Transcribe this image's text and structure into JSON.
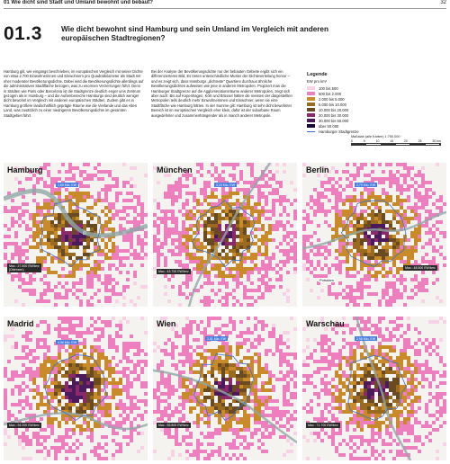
{
  "header": {
    "chapter": "01  Wie dicht sind Stadt und Umland bewohnt und bebaut?",
    "page": "32"
  },
  "section": {
    "number": "01.3",
    "title": "Wie dicht bewohnt sind Hamburg und sein Umland im Vergleich mit anderen europäischen Stadtregionen?"
  },
  "text": {
    "col1": "Hamburg gilt, wie eingangs beschrieben, im europäischen Vergleich mit seiner Dichte von etwa 2.700 Einwohnerinnen und Einwohnern pro Quadratkilometer als Stadt mit eher moderater Bevölkerungsdichte. Dabei wird die Bevölkerungsdichte allerdings auf die administrativen Stadtfläche bezogen, was zu enormen Verzerrungen führt. Denn in Städten wie Paris oder Barcelona ist die Stadtgrenze deutlich enger ums Zentrum gezogen als in Hamburg – und die Außenbereiche Hamburgs sind deutlich weniger dicht bewohnt im Vergleich mit anderen europäischen Städten. Zudem gibt es in Hamburg größere landschaftlich geprägte Räume wie die Vierlande und das Alten Land, was zusätzlich zu einer niedrigeren Bevölkerungsdichte im gesamten Stadtgebiet führt.",
    "col2": "Bei der Analyse der Bevölkerungsdichte nur der bebauten Gebiete ergibt sich ein differenzierteres Bild. Es treten unterschiedliche Muster der Dichteverteilung hervor – und es zeigt sich, dass Hamburgs „dichteste“ Quartiere durchaus ähnliche Bevölkerungsdichten aufweisen wie jene in anderen Metropolen. Projiziert man die Hamburger Stadtgrenze auf die Agglomerationsräume anderer Metropolen, zeigt sich aber auch: Bis auf Kopenhagen, Köln und Brüssel hätten die meisten der dargestellten Metropolen teils deutlich mehr Einwohnerinnen und Einwohner, wenn sie eine Stadtfläche wie Hamburg hätten. In der Summe gilt: Hamburg ist sehr dicht bewohnter Bereich ist im europäischen Vergleich eher klein, dafür ist der suburbane Raum ausgedehnter und zusammenhängender als in manch anderer Metropole."
  },
  "legend": {
    "title": "Legende",
    "unit": "EW pro km²",
    "items": [
      {
        "label": "100 bis 500",
        "color": "#f7d2e6"
      },
      {
        "label": "500 bis 2.000",
        "color": "#ee7fbf"
      },
      {
        "label": "2.000 bis 5.000",
        "color": "#c98a2a"
      },
      {
        "label": "5.000 bis 10.000",
        "color": "#9a6a1e"
      },
      {
        "label": "10.000 bis 20.000",
        "color": "#6a4a20"
      },
      {
        "label": "20.000 bis 30.000",
        "color": "#8a2a6a"
      },
      {
        "label": "30.000 bis 50.000",
        "color": "#4a1a5a"
      },
      {
        "label": "über 50.000",
        "color": "#1a0a3a"
      }
    ],
    "boundary_label": "Hamburger Stadtgrenze"
  },
  "scale": {
    "title": "Maßstab (alle Karten) 1:750.000",
    "ticks": [
      "0",
      "5",
      "10",
      "15",
      "20",
      "25",
      "30 km"
    ]
  },
  "maps": [
    {
      "name": "Hamburg",
      "peak": "1,50 Mio. EW",
      "max": "Max.: 27.500 EW/km²",
      "max2": "(Ottensen)",
      "place": ""
    },
    {
      "name": "München",
      "peak": "3,24 Mio. EW",
      "max": "Max.: 43.700 EW/km²",
      "max2": "",
      "place": ""
    },
    {
      "name": "Berlin",
      "peak": "2,79 Mio. EW",
      "max": "Max.: 48.500 EW/km²",
      "max2": "",
      "place": "Potsdam"
    },
    {
      "name": "Madrid",
      "peak": "4,06 Mio. EW",
      "max": "Max.: 94.000 EW/km²",
      "max2": "",
      "place": ""
    },
    {
      "name": "Wien",
      "peak": "2,51 Mio. EW",
      "max": "Max.: 55.800 EW/km²",
      "max2": "",
      "place": ""
    },
    {
      "name": "Warschau",
      "peak": "2,06 Mio. EW",
      "max": "Max.: 71.700 EW/km²",
      "max2": "",
      "place": ""
    }
  ],
  "colors": {
    "river": "#8fa8a8",
    "boundary": "#3a6fd0",
    "label_blue": "#4a7fe0"
  }
}
